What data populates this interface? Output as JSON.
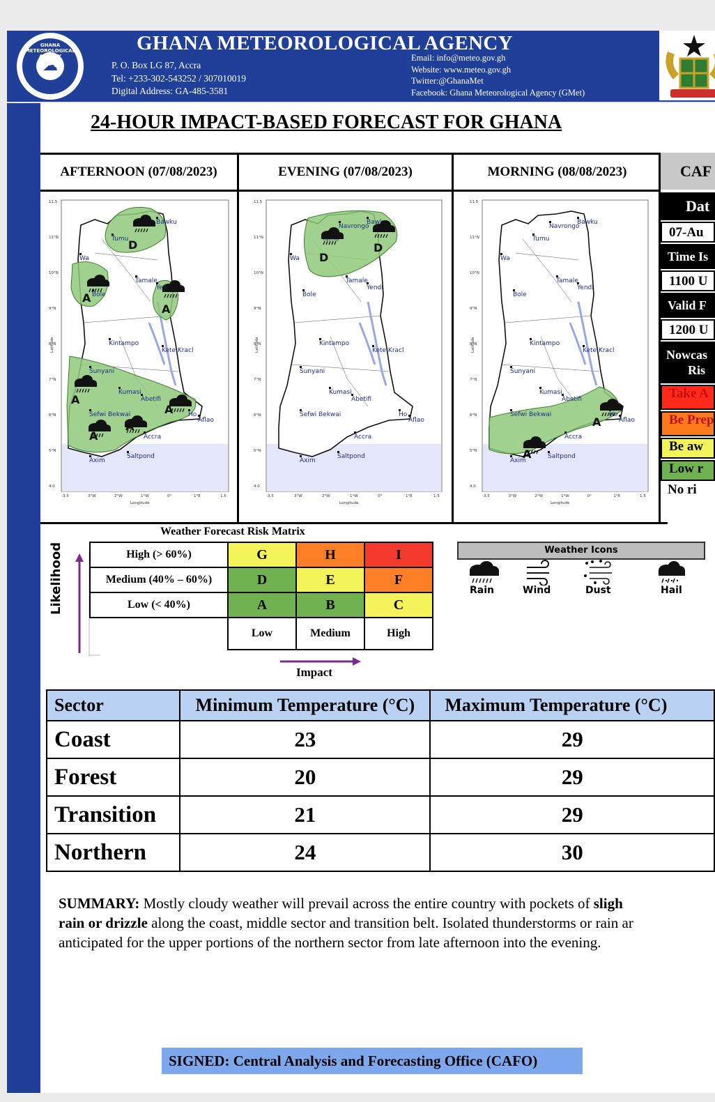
{
  "header": {
    "agency_name": "GHANA METEOROLOGICAL AGENCY",
    "logo_text": "GHANA METEOROLOGICAL AGENCY",
    "po_box": "P. O. Box  LG 87, Accra",
    "tel": "Tel: +233-302-543252 / 307010019",
    "digital_address": "Digital Address: GA-485-3581",
    "email": "Email: info@meteo.gov.gh",
    "website": "Website: www.meteo.gov.gh",
    "twitter": "Twitter:@GhanaMet",
    "facebook": "Facebook: Ghana Meteorological Agency (GMet)"
  },
  "title": "24-HOUR IMPACT-BASED FORECAST FOR GHANA",
  "periods": [
    {
      "label": "AFTERNOON (07/08/2023)"
    },
    {
      "label": "EVENING (07/08/2023)"
    },
    {
      "label": "MORNING (08/08/2023)"
    }
  ],
  "map_labels": {
    "towns": [
      "Bawku",
      "Navrongo",
      "Tumu",
      "Wa",
      "Tamale",
      "Yendi",
      "Bole",
      "Kintampo",
      "Kete Kracl",
      "Sunyani",
      "Kumasi",
      "Abetifi",
      "Ho",
      "Sefwi Bekwai",
      "Accra",
      "Aflao",
      "Axim",
      "Saltpond"
    ],
    "xlabel": "Longitude",
    "ylabel": "Latitude",
    "xticks": [
      "-3.5",
      "3°W",
      "2°W",
      "1°W",
      "0°",
      "1°E",
      "1.5"
    ],
    "yticks": [
      "11.5",
      "11°N",
      "10°N",
      "9°N",
      "8°N",
      "7°N",
      "6°N",
      "5°N",
      "4.0"
    ],
    "risk_letters": [
      "A",
      "D"
    ]
  },
  "cap_panel": {
    "header": "CAF",
    "date_label": "Dat",
    "date_value": "07-Au",
    "time_issued_label": "Time Is",
    "time_issued_value": "1100 U",
    "valid_label": "Valid F",
    "valid_value": "1200 U",
    "nowcast_label_1": "Nowcas",
    "nowcast_label_2": "Ris",
    "risk_levels": [
      {
        "label": "Take A",
        "color": "#ff2a1a"
      },
      {
        "label": "Be Prep",
        "color": "#ff7a1c"
      },
      {
        "label": "Be aw",
        "color": "#f4f35a"
      },
      {
        "label": "Low r",
        "color": "#71b250"
      },
      {
        "label": "No ri",
        "color": "#ffffff"
      }
    ]
  },
  "risk_matrix": {
    "title": "Weather Forecast Risk Matrix",
    "likelihood_label": "Likelihood",
    "impact_label": "Impact",
    "rows": [
      {
        "label": "High (> 60%)",
        "cells": [
          "G",
          "H",
          "I"
        ],
        "colors": [
          "#f4f35a",
          "#ff7f27",
          "#f23a2d"
        ]
      },
      {
        "label": "Medium (40% – 60%)",
        "cells": [
          "D",
          "E",
          "F"
        ],
        "colors": [
          "#71b250",
          "#f4f35a",
          "#ff7f27"
        ]
      },
      {
        "label": "Low (< 40%)",
        "cells": [
          "A",
          "B",
          "C"
        ],
        "colors": [
          "#71b250",
          "#71b250",
          "#f4f35a"
        ]
      }
    ],
    "columns": [
      "Low",
      "Medium",
      "High"
    ]
  },
  "weather_icons": {
    "title": "Weather Icons",
    "items": [
      "Rain",
      "Wind",
      "Dust",
      "Hail"
    ]
  },
  "temperature_table": {
    "headers": [
      "Sector",
      "Minimum Temperature (°C)",
      "Maximum Temperature (°C)"
    ],
    "rows": [
      {
        "sector": "Coast",
        "min": "23",
        "max": "29"
      },
      {
        "sector": "Forest",
        "min": "20",
        "max": "29"
      },
      {
        "sector": "Transition",
        "min": "21",
        "max": "29"
      },
      {
        "sector": "Northern",
        "min": "24",
        "max": "30"
      }
    ]
  },
  "summary": {
    "label": "SUMMARY:",
    "line1_a": " Mostly cloudy weather will prevail across the entire country with pockets of ",
    "line1_b": "sligh",
    "line2_a": "rain or drizzle",
    "line2_b": " along the coast, middle sector and transition belt. Isolated thunderstorms or rain ar",
    "line3": "anticipated for the upper portions of the northern sector from late afternoon into the evening."
  },
  "signed": "SIGNED: Central Analysis and Forecasting Office (CAFO)",
  "colors": {
    "brand_blue": "#1f3f98",
    "risk_area_green": "#8fc97a",
    "sea": "#e4e7fb",
    "header_blue": "#b9d2f3",
    "signed_blue": "#7ea8ee"
  }
}
